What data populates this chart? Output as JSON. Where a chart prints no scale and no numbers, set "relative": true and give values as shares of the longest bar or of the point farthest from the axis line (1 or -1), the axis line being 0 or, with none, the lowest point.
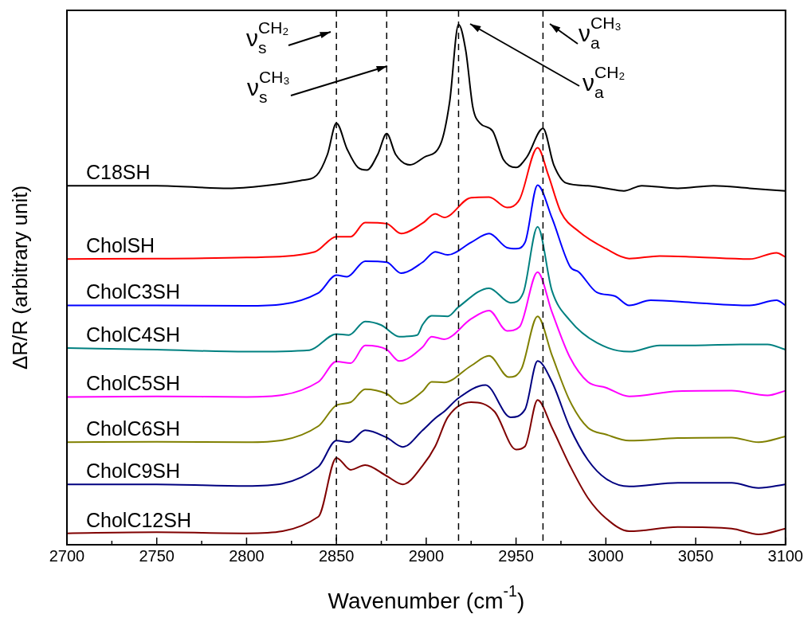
{
  "chart_data": {
    "type": "line",
    "relative": true,
    "xlabel": "Wavenumber (cm$^{-1}$)",
    "ylabel": "ΔR/R (arbitrary unit)",
    "xlim": [
      2700,
      3100
    ],
    "xticks": [
      2700,
      {
        "value": 2725,
        "label": null
      },
      2750,
      {
        "value": 2775,
        "label": null
      },
      2800,
      {
        "value": 2825,
        "label": null
      },
      2850,
      {
        "value": 2875,
        "label": null
      },
      2900,
      {
        "value": 2925,
        "label": null
      },
      2950,
      {
        "value": 2975,
        "label": null
      },
      3000,
      {
        "value": 3025,
        "label": null
      },
      3050,
      {
        "value": 3075,
        "label": null
      },
      3100
    ],
    "grid": false,
    "legend": false,
    "marker": "none",
    "line_style": "solid",
    "ref_lines": [
      {
        "axis": "x",
        "value": 2850,
        "line_style": "dashed",
        "color": "#000000"
      },
      {
        "axis": "x",
        "value": 2878,
        "line_style": "dashed",
        "color": "#000000"
      },
      {
        "axis": "x",
        "value": 2918,
        "line_style": "dashed",
        "color": "#000000"
      },
      {
        "axis": "x",
        "value": 2965,
        "line_style": "dashed",
        "color": "#000000"
      }
    ],
    "annotations": [
      "ν$_{s}$$^{CH₂}$",
      "ν$_{s}$$^{CH₃}$",
      "ν$_{a}$$^{CH₂}$",
      "ν$_{a}$$^{CH₃}$"
    ],
    "series": [
      {
        "name": "C18SH",
        "color": "#000000",
        "x": [
          2700,
          2750,
          2790,
          2810,
          2830,
          2839,
          2845,
          2850,
          2856,
          2862,
          2867,
          2873,
          2878,
          2883,
          2891,
          2899,
          2908,
          2913,
          2918,
          2922,
          2926,
          2930,
          2937,
          2943,
          2950,
          2956,
          2965,
          2971,
          2978,
          2990,
          3000,
          3010,
          3020,
          3040,
          3060,
          3080,
          3100
        ],
        "values": [
          0.69,
          0.69,
          0.685,
          0.69,
          0.7,
          0.71,
          0.75,
          0.81,
          0.76,
          0.725,
          0.72,
          0.75,
          0.79,
          0.75,
          0.73,
          0.745,
          0.77,
          0.85,
          1.0,
          0.95,
          0.84,
          0.81,
          0.795,
          0.74,
          0.725,
          0.745,
          0.8,
          0.73,
          0.695,
          0.69,
          0.685,
          0.68,
          0.69,
          0.685,
          0.69,
          0.685,
          0.68
        ]
      },
      {
        "name": "CholSH",
        "color": "#ff0000",
        "x": [
          2700,
          2750,
          2800,
          2838,
          2850,
          2858,
          2866,
          2878,
          2886,
          2898,
          2905,
          2910,
          2925,
          2935,
          2945,
          2952,
          2962,
          2968,
          2975,
          2985,
          3000,
          3013,
          3030,
          3050,
          3080,
          3095,
          3100
        ],
        "values": [
          0.549,
          0.55,
          0.552,
          0.563,
          0.592,
          0.592,
          0.619,
          0.617,
          0.598,
          0.618,
          0.636,
          0.629,
          0.667,
          0.668,
          0.648,
          0.664,
          0.763,
          0.71,
          0.639,
          0.602,
          0.569,
          0.55,
          0.555,
          0.553,
          0.549,
          0.561,
          0.553
        ]
      },
      {
        "name": "CholC3SH",
        "color": "#0000ff",
        "x": [
          2700,
          2750,
          2800,
          2840,
          2850,
          2856,
          2866,
          2878,
          2886,
          2898,
          2905,
          2912,
          2925,
          2935,
          2945,
          2950,
          2955,
          2962,
          2970,
          2980,
          2985,
          2995,
          3005,
          3013,
          3025,
          3050,
          3080,
          3095,
          3100
        ],
        "values": [
          0.46,
          0.46,
          0.459,
          0.484,
          0.518,
          0.515,
          0.545,
          0.543,
          0.522,
          0.543,
          0.563,
          0.557,
          0.581,
          0.598,
          0.571,
          0.569,
          0.581,
          0.691,
          0.628,
          0.535,
          0.524,
          0.485,
          0.478,
          0.46,
          0.47,
          0.465,
          0.46,
          0.47,
          0.46
        ]
      },
      {
        "name": "CholC4SH",
        "color": "#008080",
        "x": [
          2700,
          2750,
          2800,
          2835,
          2850,
          2857,
          2866,
          2875,
          2885,
          2895,
          2898,
          2903,
          2912,
          2918,
          2935,
          2947,
          2954,
          2962,
          2970,
          2980,
          2995,
          3013,
          3030,
          3050,
          3075,
          3090,
          3100
        ],
        "values": [
          0.378,
          0.375,
          0.371,
          0.374,
          0.405,
          0.403,
          0.429,
          0.422,
          0.4,
          0.403,
          0.423,
          0.44,
          0.439,
          0.457,
          0.493,
          0.465,
          0.484,
          0.611,
          0.488,
          0.431,
          0.388,
          0.371,
          0.383,
          0.383,
          0.385,
          0.385,
          0.375
        ]
      },
      {
        "name": "CholC5SH",
        "color": "#ff00ff",
        "x": [
          2700,
          2750,
          2800,
          2840,
          2850,
          2858,
          2866,
          2878,
          2885,
          2898,
          2903,
          2910,
          2925,
          2935,
          2945,
          2952,
          2962,
          2970,
          2980,
          2990,
          3000,
          3013,
          3040,
          3070,
          3090,
          3100
        ],
        "values": [
          0.284,
          0.285,
          0.284,
          0.313,
          0.352,
          0.349,
          0.383,
          0.375,
          0.353,
          0.38,
          0.4,
          0.395,
          0.434,
          0.45,
          0.411,
          0.419,
          0.524,
          0.447,
          0.36,
          0.313,
          0.302,
          0.285,
          0.295,
          0.296,
          0.287,
          0.296
        ]
      },
      {
        "name": "CholC6SH",
        "color": "#808000",
        "x": [
          2700,
          2750,
          2800,
          2840,
          2850,
          2858,
          2866,
          2878,
          2886,
          2898,
          2903,
          2910,
          2925,
          2935,
          2946,
          2953,
          2962,
          2970,
          2980,
          2990,
          3000,
          3013,
          3040,
          3070,
          3085,
          3100
        ],
        "values": [
          0.197,
          0.198,
          0.197,
          0.228,
          0.268,
          0.274,
          0.299,
          0.29,
          0.271,
          0.295,
          0.313,
          0.312,
          0.344,
          0.363,
          0.322,
          0.338,
          0.439,
          0.364,
          0.276,
          0.225,
          0.212,
          0.2,
          0.205,
          0.206,
          0.197,
          0.208
        ]
      },
      {
        "name": "CholC9SH",
        "color": "#000080",
        "x": [
          2700,
          2750,
          2800,
          2840,
          2850,
          2857,
          2866,
          2878,
          2887,
          2898,
          2905,
          2910,
          2918,
          2933,
          2947,
          2955,
          2962,
          2970,
          2980,
          2990,
          3000,
          3013,
          3040,
          3070,
          3085,
          3100
        ],
        "values": [
          0.116,
          0.116,
          0.113,
          0.15,
          0.2,
          0.197,
          0.22,
          0.206,
          0.188,
          0.22,
          0.243,
          0.256,
          0.282,
          0.307,
          0.245,
          0.26,
          0.353,
          0.313,
          0.225,
          0.163,
          0.127,
          0.112,
          0.119,
          0.119,
          0.109,
          0.116
        ]
      },
      {
        "name": "CholC12SH",
        "color": "#800000",
        "x": [
          2700,
          2750,
          2800,
          2840,
          2850,
          2858,
          2866,
          2878,
          2887,
          2898,
          2905,
          2912,
          2925,
          2938,
          2950,
          2955,
          2962,
          2970,
          2980,
          2990,
          3000,
          3013,
          3040,
          3070,
          3085,
          3100
        ],
        "values": [
          0.022,
          0.024,
          0.022,
          0.054,
          0.167,
          0.144,
          0.153,
          0.132,
          0.116,
          0.152,
          0.189,
          0.245,
          0.274,
          0.256,
          0.183,
          0.189,
          0.278,
          0.225,
          0.152,
          0.09,
          0.051,
          0.026,
          0.034,
          0.031,
          0.02,
          0.031
        ]
      }
    ]
  }
}
